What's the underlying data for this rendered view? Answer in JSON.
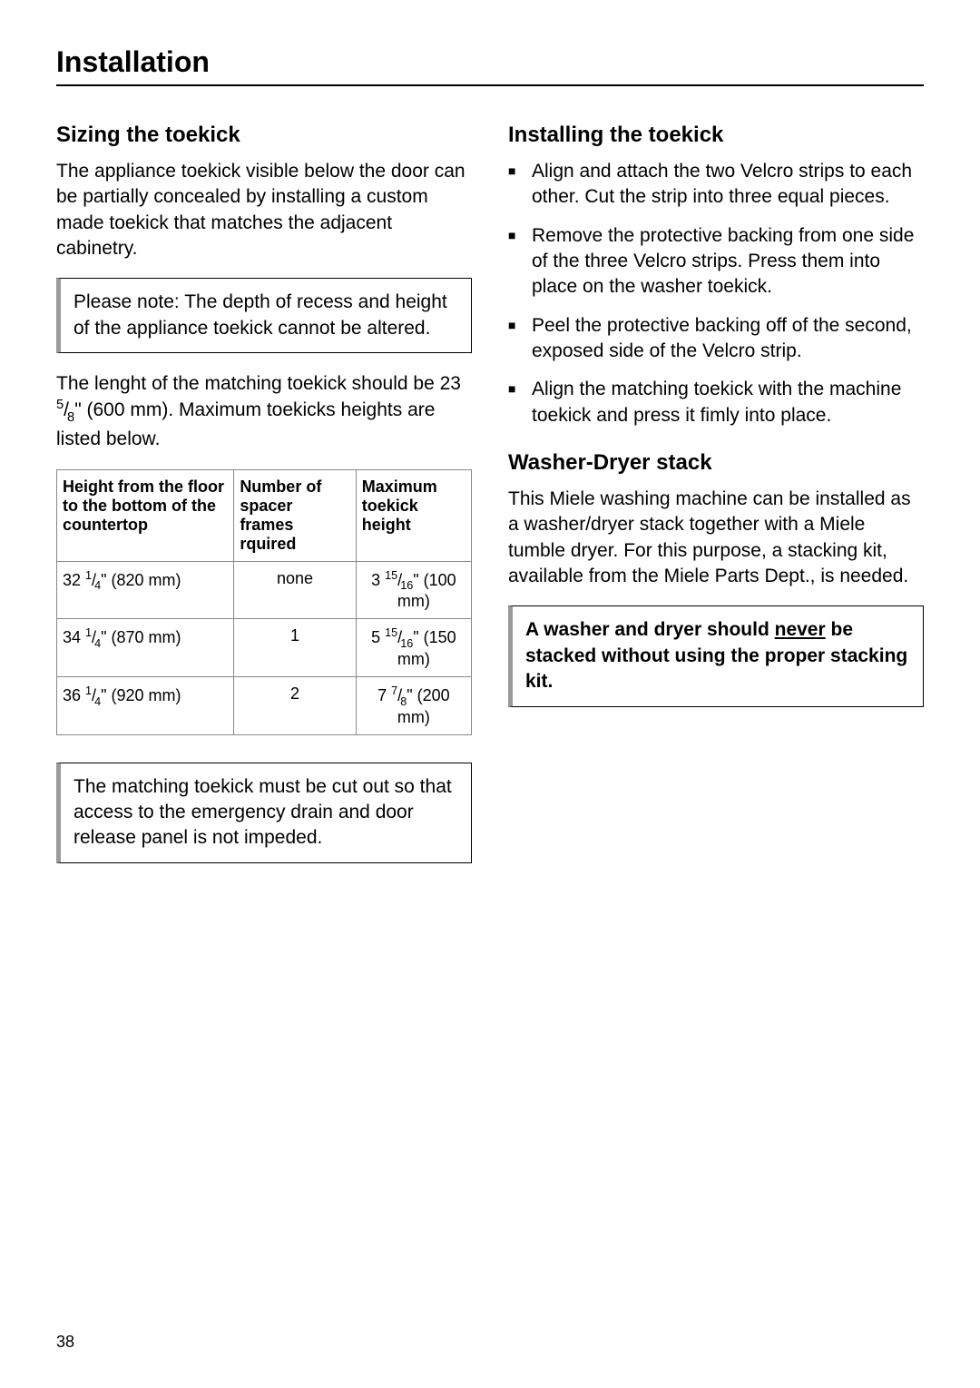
{
  "pageTitle": "Installation",
  "pageNumber": "38",
  "left": {
    "heading": "Sizing the toekick",
    "intro": "The appliance toekick visible below the door can be partially concealed by installing a custom made toekick that matches the adjacent cabinetry.",
    "note1": "Please note: The depth of recess and height of the appliance toekick cannot be altered.",
    "lengthTextPre": "The lenght of the matching toekick should be 23 ",
    "lengthFracNum": "5",
    "lengthFracDen": "8",
    "lengthTextPost": "\" (600 mm). Maximum toekicks heights are listed below.",
    "table": {
      "headers": [
        "Height from the floor to the bottom of the countertop",
        "Number of spacer frames rquired",
        "Maximum toekick height"
      ],
      "rows": [
        {
          "h_int": "32",
          "h_num": "1",
          "h_den": "4",
          "h_mm": "820 mm",
          "spacer": "none",
          "t_int": "3",
          "t_num": "15",
          "t_den": "16",
          "t_mm": "100 mm"
        },
        {
          "h_int": "34",
          "h_num": "1",
          "h_den": "4",
          "h_mm": "870 mm",
          "spacer": "1",
          "t_int": "5",
          "t_num": "15",
          "t_den": "16",
          "t_mm": "150 mm"
        },
        {
          "h_int": "36",
          "h_num": "1",
          "h_den": "4",
          "h_mm": "920 mm",
          "spacer": "2",
          "t_int": "7",
          "t_num": "7",
          "t_den": "8",
          "t_mm": "200 mm"
        }
      ]
    },
    "note2": "The matching toekick must be cut out so that access to the emergency drain and door release panel is not impeded."
  },
  "right": {
    "heading1": "Installing the toekick",
    "steps": [
      "Align and attach the two Velcro strips to each other. Cut the strip into three equal pieces.",
      "Remove the protective backing from one side of the three Velcro strips. Press them into place on the washer toekick.",
      "Peel the protective backing off of the second, exposed side of the Velcro strip.",
      "Align the matching toekick with the machine toekick and press it fimly into place."
    ],
    "heading2": "Washer-Dryer stack",
    "stackText": "This Miele washing machine can be installed as a washer/dryer stack together with a Miele tumble dryer. For this purpose, a stacking kit, available from the Miele Parts Dept., is needed.",
    "warningPre": "A washer and dryer should ",
    "warningUnderline": "never",
    "warningPost": " be stacked without using the proper stacking kit."
  }
}
